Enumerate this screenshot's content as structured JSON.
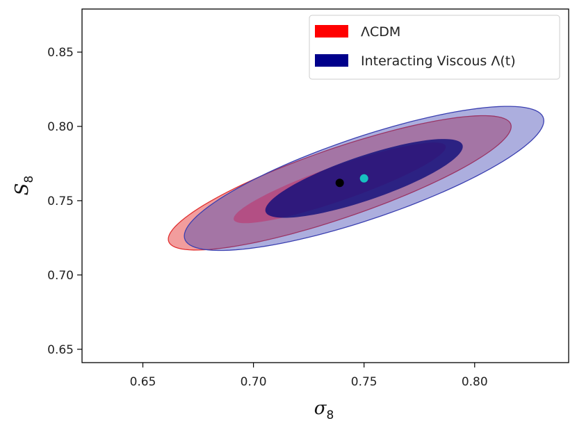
{
  "chart_data": {
    "type": "scatter",
    "xlabel": "σ",
    "xlabel_sub": "8",
    "ylabel": "S",
    "ylabel_sub": "8",
    "xlim": [
      0.6225,
      0.8425
    ],
    "ylim": [
      0.641,
      0.879
    ],
    "xticks": [
      0.65,
      0.7,
      0.75,
      0.8
    ],
    "xtick_labels": [
      "0.65",
      "0.70",
      "0.75",
      "0.80"
    ],
    "yticks": [
      0.65,
      0.7,
      0.75,
      0.8,
      0.85
    ],
    "ytick_labels": [
      "0.65",
      "0.70",
      "0.75",
      "0.80",
      "0.85"
    ],
    "grid": false,
    "legend_position": "top-right",
    "series": [
      {
        "name": "ΛCDM",
        "color": "#ff0000",
        "center": [
          0.739,
          0.762
        ],
        "contours": [
          {
            "level": "1σ",
            "a": 0.054,
            "b": 0.011,
            "angle_deg": 28
          },
          {
            "level": "2σ",
            "a": 0.087,
            "b": 0.022,
            "angle_deg": 28
          }
        ]
      },
      {
        "name": "Interacting Viscous Λ(t)",
        "color": "#00008b",
        "center": [
          0.75,
          0.765
        ],
        "contours": [
          {
            "level": "1σ",
            "a": 0.05,
            "b": 0.014,
            "angle_deg": 28
          },
          {
            "level": "2σ",
            "a": 0.091,
            "b": 0.026,
            "angle_deg": 28
          }
        ]
      }
    ],
    "points": [
      {
        "x": 0.739,
        "y": 0.762,
        "color": "#000000"
      },
      {
        "x": 0.75,
        "y": 0.765,
        "color": "#17c0c0"
      }
    ]
  }
}
